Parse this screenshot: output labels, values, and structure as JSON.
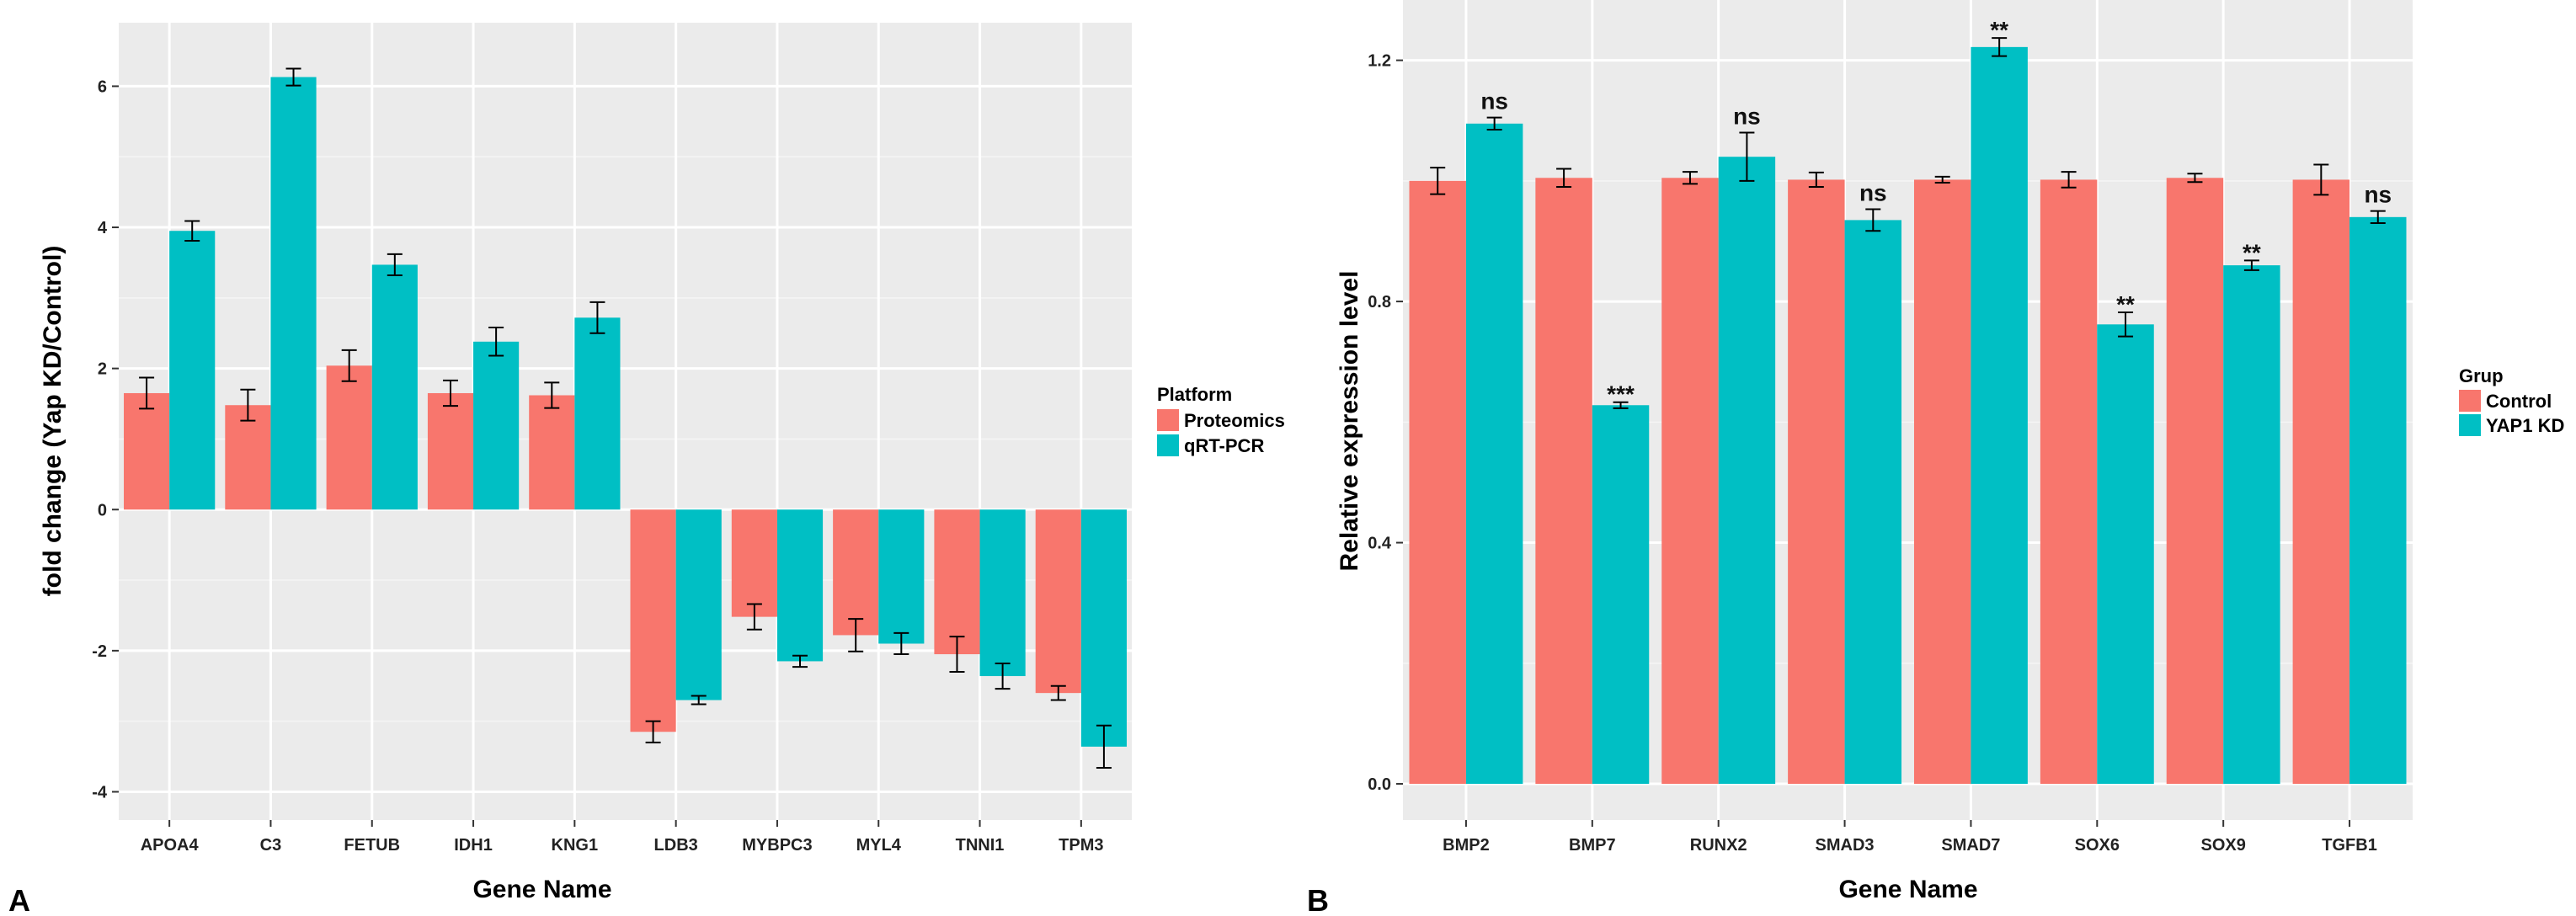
{
  "colors": {
    "proteomics": "#F8766D",
    "qrtpcr": "#00BFC4",
    "panel_bg": "#EBEBEB",
    "grid": "#FFFFFF"
  },
  "panelA": {
    "letter": "A",
    "legend_title": "Platform",
    "legend_items": [
      "Proteomics",
      "qRT-PCR"
    ]
  },
  "panelB": {
    "letter": "B",
    "legend_title": "Grup",
    "legend_items": [
      "Control",
      "YAP1 KD"
    ]
  },
  "chart_data": [
    {
      "type": "bar",
      "panel": "A",
      "xlabel": "Gene Name",
      "ylabel": "fold change (Yap KD/Control)",
      "ylim": [
        -4.4,
        6.9
      ],
      "yticks": [
        -4,
        -2,
        0,
        2,
        4,
        6
      ],
      "categories": [
        "APOA4",
        "C3",
        "FETUB",
        "IDH1",
        "KNG1",
        "LDB3",
        "MYBPC3",
        "MYL4",
        "TNNI1",
        "TPM3"
      ],
      "series": [
        {
          "name": "Proteomics",
          "values": [
            1.65,
            1.48,
            2.04,
            1.65,
            1.62,
            -3.15,
            -1.52,
            -1.78,
            -2.05,
            -2.6
          ],
          "errors": [
            0.22,
            0.22,
            0.22,
            0.18,
            0.18,
            0.15,
            0.18,
            0.23,
            0.25,
            0.1
          ]
        },
        {
          "name": "qRT-PCR",
          "values": [
            3.95,
            6.13,
            3.47,
            2.38,
            2.72,
            -2.7,
            -2.15,
            -1.9,
            -2.36,
            -3.36
          ],
          "errors": [
            0.14,
            0.12,
            0.15,
            0.2,
            0.22,
            0.06,
            0.08,
            0.15,
            0.18,
            0.3
          ]
        }
      ],
      "grid": true,
      "legend_position": "right"
    },
    {
      "type": "bar",
      "panel": "B",
      "xlabel": "Gene Name",
      "ylabel": "Relative expression level",
      "ylim": [
        -0.06,
        1.3
      ],
      "yticks": [
        0.0,
        0.4,
        0.8,
        1.2
      ],
      "ytick_labels": [
        "0.0",
        "0.4",
        "0.8",
        "1.2"
      ],
      "categories": [
        "BMP2",
        "BMP7",
        "RUNX2",
        "SMAD3",
        "SMAD7",
        "SOX6",
        "SOX9",
        "TGFB1"
      ],
      "series": [
        {
          "name": "Control",
          "values": [
            1.0,
            1.005,
            1.005,
            1.002,
            1.002,
            1.002,
            1.005,
            1.002
          ],
          "errors": [
            0.022,
            0.015,
            0.01,
            0.012,
            0.005,
            0.013,
            0.007,
            0.025
          ]
        },
        {
          "name": "YAP1 KD",
          "values": [
            1.095,
            0.628,
            1.04,
            0.935,
            1.222,
            0.762,
            0.86,
            0.94
          ],
          "errors": [
            0.01,
            0.005,
            0.04,
            0.018,
            0.015,
            0.02,
            0.008,
            0.01
          ]
        }
      ],
      "annotations": [
        "ns",
        "***",
        "ns",
        "ns",
        "**",
        "**",
        "**",
        "ns"
      ],
      "grid": true,
      "legend_position": "right"
    }
  ]
}
